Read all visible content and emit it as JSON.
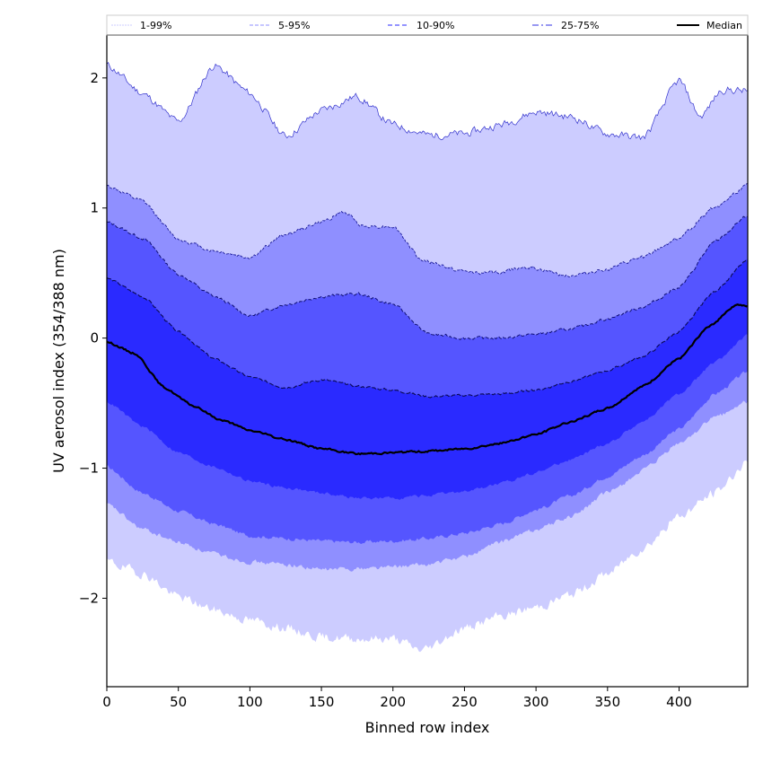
{
  "chart_data": {
    "type": "area",
    "title": "",
    "xlabel": "Binned row index",
    "ylabel": "UV aerosol index (354/388 nm)",
    "xlim": [
      0,
      448
    ],
    "ylim": [
      -2.68,
      2.33
    ],
    "grid": false,
    "legend_placement": "top",
    "x_ticks": [
      0,
      50,
      100,
      150,
      200,
      250,
      300,
      350,
      400
    ],
    "x_tick_labels": [
      "0",
      "50",
      "100",
      "150",
      "200",
      "250",
      "300",
      "350",
      "400"
    ],
    "y_ticks": [
      2,
      1,
      0,
      -1,
      -2
    ],
    "y_tick_labels": [
      "2",
      "1",
      "0",
      "−1",
      "−2"
    ],
    "colors": {
      "band_1_99": "#ccccff",
      "band_5_95": "#8f8fff",
      "band_10_90": "#5555ff",
      "band_25_75": "#2a2aff",
      "line_1_99": "#3333cc",
      "line_5_95": "#1a1a99",
      "line_10_90": "#111177",
      "line_25_75": "#0a0a55",
      "median": "#000000"
    },
    "legend": [
      {
        "label": "1-99%",
        "style": "dotted",
        "color": "#ccccff"
      },
      {
        "label": "5-95%",
        "style": "dashed",
        "color": "#8f8fff"
      },
      {
        "label": "10-90%",
        "style": "dashed",
        "color": "#5555ff"
      },
      {
        "label": "25-75%",
        "style": "dashdot",
        "color": "#7777ee"
      },
      {
        "label": "Median",
        "style": "solid",
        "color": "#000000"
      }
    ],
    "series": [
      {
        "name": "p99",
        "x": [
          0,
          25,
          50,
          75,
          100,
          125,
          150,
          175,
          200,
          225,
          250,
          275,
          300,
          325,
          350,
          375,
          400,
          415,
          430,
          448
        ],
        "values": [
          2.1,
          1.88,
          1.66,
          2.1,
          1.88,
          1.55,
          1.75,
          1.86,
          1.64,
          1.56,
          1.57,
          1.64,
          1.74,
          1.7,
          1.57,
          1.54,
          1.98,
          1.7,
          1.91,
          1.9
        ]
      },
      {
        "name": "p95",
        "x": [
          0,
          25,
          50,
          75,
          100,
          125,
          150,
          165,
          180,
          200,
          220,
          250,
          275,
          290,
          325,
          350,
          375,
          400,
          425,
          448
        ],
        "values": [
          1.17,
          1.05,
          0.76,
          0.67,
          0.62,
          0.8,
          0.89,
          0.97,
          0.86,
          0.86,
          0.6,
          0.51,
          0.5,
          0.55,
          0.48,
          0.53,
          0.62,
          0.77,
          1.01,
          1.17
        ]
      },
      {
        "name": "p90",
        "x": [
          0,
          25,
          50,
          75,
          100,
          125,
          150,
          175,
          200,
          225,
          250,
          275,
          300,
          325,
          350,
          375,
          400,
          425,
          448
        ],
        "values": [
          0.89,
          0.77,
          0.49,
          0.32,
          0.17,
          0.26,
          0.32,
          0.34,
          0.26,
          0.03,
          0.0,
          0.0,
          0.03,
          0.07,
          0.15,
          0.24,
          0.39,
          0.74,
          0.94
        ]
      },
      {
        "name": "p75",
        "x": [
          0,
          25,
          50,
          75,
          100,
          125,
          150,
          175,
          200,
          225,
          250,
          275,
          300,
          325,
          350,
          375,
          400,
          425,
          448
        ],
        "values": [
          0.46,
          0.32,
          0.05,
          -0.16,
          -0.3,
          -0.38,
          -0.32,
          -0.37,
          -0.4,
          -0.45,
          -0.44,
          -0.43,
          -0.4,
          -0.33,
          -0.25,
          -0.14,
          0.05,
          0.36,
          0.6
        ]
      },
      {
        "name": "median",
        "x": [
          0,
          20,
          40,
          60,
          80,
          100,
          125,
          150,
          175,
          200,
          225,
          250,
          275,
          300,
          325,
          350,
          375,
          400,
          420,
          440,
          448
        ],
        "values": [
          -0.03,
          -0.12,
          -0.38,
          -0.52,
          -0.63,
          -0.71,
          -0.78,
          -0.85,
          -0.89,
          -0.88,
          -0.87,
          -0.85,
          -0.81,
          -0.74,
          -0.64,
          -0.54,
          -0.37,
          -0.16,
          0.08,
          0.26,
          0.24
        ]
      },
      {
        "name": "p25",
        "x": [
          0,
          25,
          50,
          75,
          100,
          125,
          150,
          175,
          200,
          225,
          250,
          275,
          300,
          325,
          350,
          375,
          400,
          425,
          448
        ],
        "values": [
          -0.49,
          -0.68,
          -0.88,
          -0.99,
          -1.1,
          -1.15,
          -1.19,
          -1.23,
          -1.23,
          -1.21,
          -1.18,
          -1.12,
          -1.03,
          -0.93,
          -0.81,
          -0.64,
          -0.43,
          -0.19,
          0.02
        ]
      },
      {
        "name": "p10",
        "x": [
          0,
          25,
          50,
          75,
          100,
          125,
          150,
          175,
          200,
          225,
          250,
          275,
          300,
          325,
          350,
          375,
          400,
          425,
          448
        ],
        "values": [
          -0.99,
          -1.19,
          -1.33,
          -1.43,
          -1.52,
          -1.54,
          -1.56,
          -1.57,
          -1.56,
          -1.54,
          -1.5,
          -1.43,
          -1.32,
          -1.21,
          -1.06,
          -0.9,
          -0.7,
          -0.43,
          -0.26
        ]
      },
      {
        "name": "p5",
        "x": [
          0,
          25,
          50,
          75,
          100,
          125,
          150,
          175,
          200,
          225,
          250,
          275,
          300,
          325,
          350,
          375,
          400,
          425,
          448
        ],
        "values": [
          -1.28,
          -1.47,
          -1.57,
          -1.66,
          -1.72,
          -1.74,
          -1.78,
          -1.77,
          -1.76,
          -1.74,
          -1.68,
          -1.57,
          -1.47,
          -1.37,
          -1.19,
          -1.02,
          -0.81,
          -0.61,
          -0.49
        ]
      },
      {
        "name": "p1",
        "x": [
          0,
          25,
          50,
          75,
          100,
          125,
          150,
          175,
          200,
          220,
          250,
          275,
          300,
          325,
          350,
          375,
          400,
          425,
          448
        ],
        "values": [
          -1.72,
          -1.81,
          -1.99,
          -2.09,
          -2.17,
          -2.23,
          -2.3,
          -2.31,
          -2.31,
          -2.4,
          -2.23,
          -2.14,
          -2.07,
          -1.97,
          -1.81,
          -1.61,
          -1.37,
          -1.19,
          -0.95
        ]
      }
    ]
  }
}
